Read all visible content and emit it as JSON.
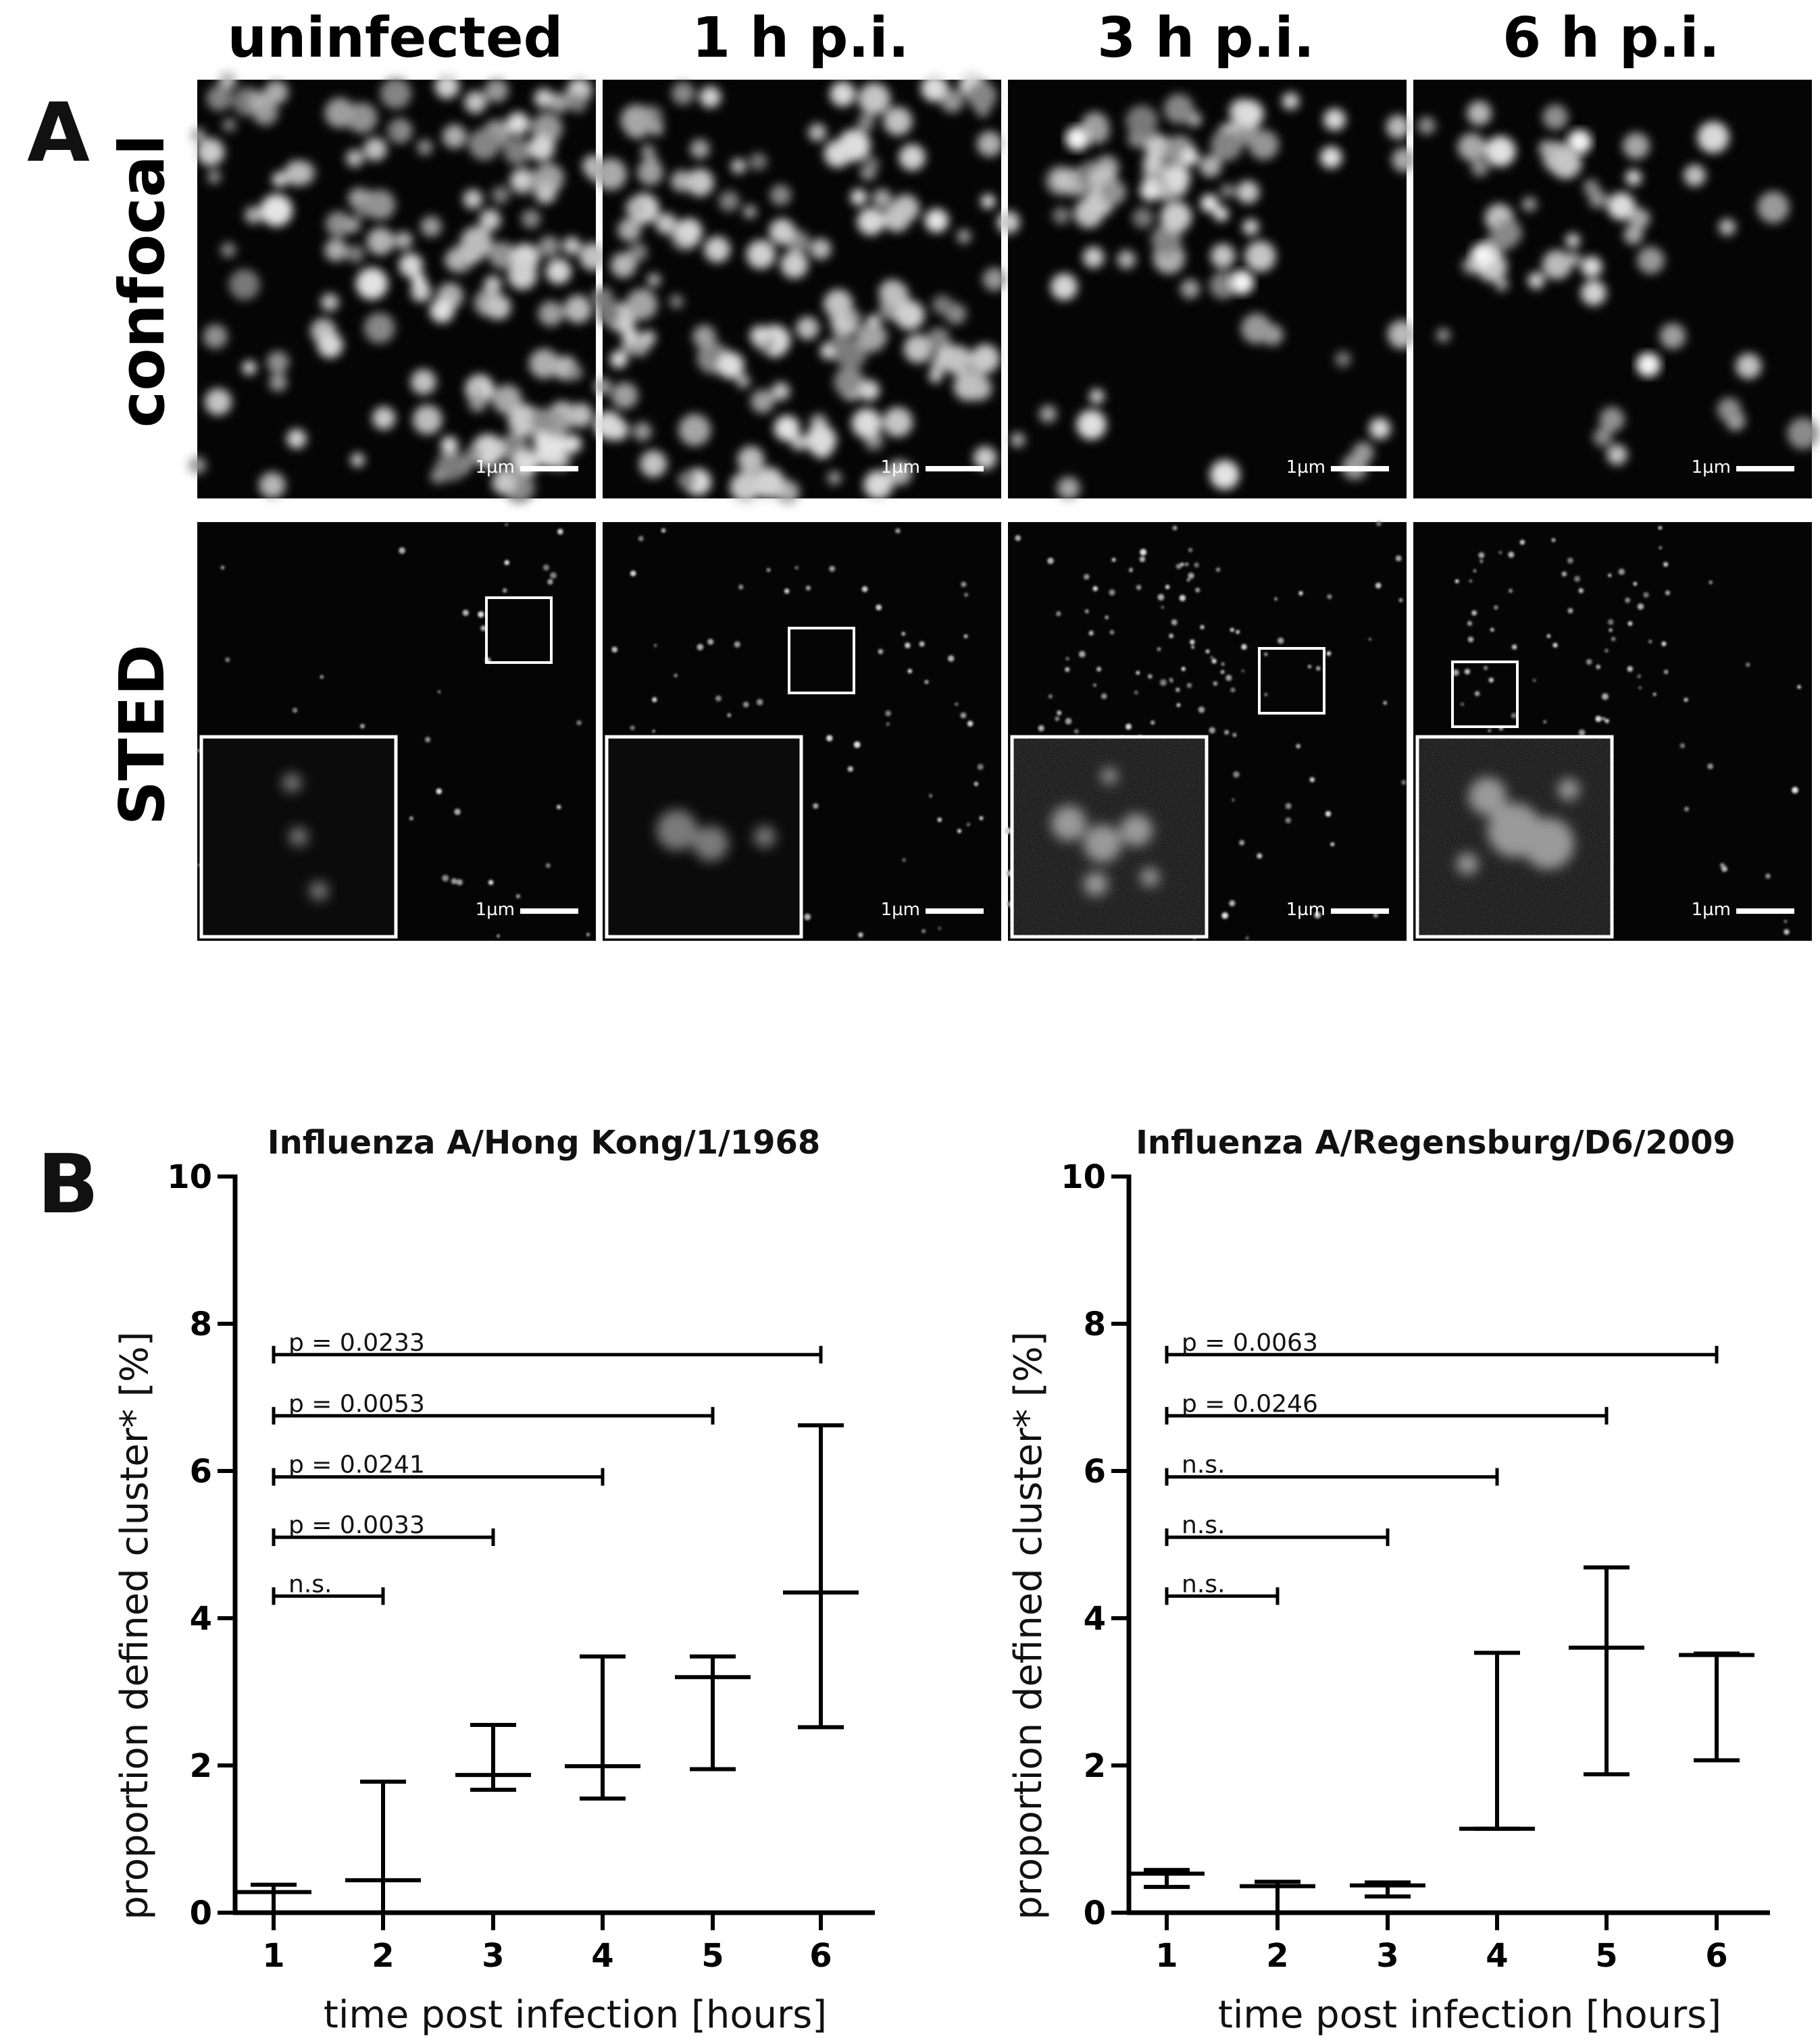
{
  "panel_a": {
    "letter": "A",
    "columns": [
      "uninfected",
      "1 h p.i.",
      "3 h p.i.",
      "6 h p.i."
    ],
    "rows": [
      "confocal",
      "STED"
    ],
    "scale_bar_label": "1µm"
  },
  "panel_b": {
    "letter": "B"
  },
  "chart_data": [
    {
      "type": "errorbar",
      "title": "Influenza A/Hong Kong/1/1968",
      "xlabel": "time post infection [hours]",
      "ylabel": "proportion  defined cluster* [%]",
      "x": [
        1,
        2,
        3,
        4,
        5,
        6
      ],
      "xticks": [
        "1",
        "2",
        "3",
        "4",
        "5",
        "6"
      ],
      "yticks": [
        "0",
        "2",
        "4",
        "6",
        "8",
        "10"
      ],
      "ylim": [
        0,
        10
      ],
      "median": [
        0.28,
        0.44,
        1.87,
        1.99,
        3.2,
        4.35
      ],
      "low": [
        0.0,
        0.0,
        1.67,
        1.55,
        1.95,
        2.52
      ],
      "high": [
        0.38,
        1.78,
        2.55,
        3.48,
        3.48,
        6.62
      ],
      "comparisons": [
        {
          "from": 1,
          "to": 2,
          "level": 4.3,
          "label": "n.s."
        },
        {
          "from": 1,
          "to": 3,
          "level": 5.1,
          "label": "p = 0.0033"
        },
        {
          "from": 1,
          "to": 4,
          "level": 5.92,
          "label": "p = 0.0241"
        },
        {
          "from": 1,
          "to": 5,
          "level": 6.75,
          "label": "p = 0.0053"
        },
        {
          "from": 1,
          "to": 6,
          "level": 7.58,
          "label": "p = 0.0233"
        }
      ]
    },
    {
      "type": "errorbar",
      "title": "Influenza A/Regensburg/D6/2009",
      "xlabel": "time post infection [hours]",
      "ylabel": "proportion  defined cluster* [%]",
      "x": [
        1,
        2,
        3,
        4,
        5,
        6
      ],
      "xticks": [
        "1",
        "2",
        "3",
        "4",
        "5",
        "6"
      ],
      "yticks": [
        "0",
        "2",
        "4",
        "6",
        "8",
        "10"
      ],
      "ylim": [
        0,
        10
      ],
      "median": [
        0.53,
        0.36,
        0.37,
        1.14,
        3.6,
        3.5
      ],
      "low": [
        0.35,
        0.0,
        0.22,
        1.14,
        1.88,
        2.07
      ],
      "high": [
        0.58,
        0.42,
        0.41,
        3.53,
        4.69,
        3.52
      ],
      "comparisons": [
        {
          "from": 1,
          "to": 2,
          "level": 4.3,
          "label": "n.s."
        },
        {
          "from": 1,
          "to": 3,
          "level": 5.1,
          "label": "n.s."
        },
        {
          "from": 1,
          "to": 4,
          "level": 5.92,
          "label": "n.s."
        },
        {
          "from": 1,
          "to": 5,
          "level": 6.75,
          "label": "p = 0.0246"
        },
        {
          "from": 1,
          "to": 6,
          "level": 7.58,
          "label": "p = 0.0063"
        }
      ]
    }
  ]
}
